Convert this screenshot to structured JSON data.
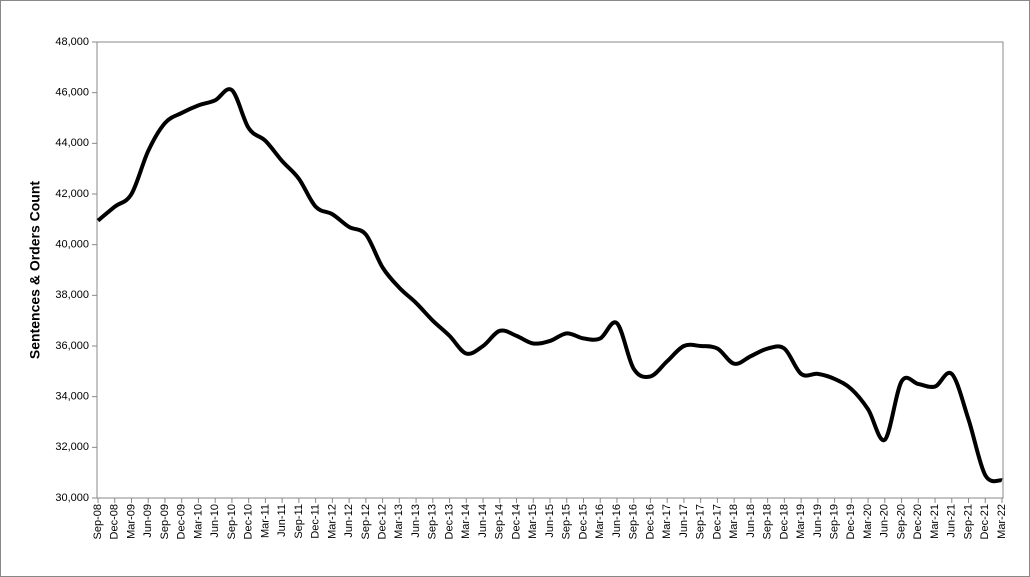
{
  "chart_data": {
    "type": "line",
    "y_label": "Sentences & Orders Count",
    "categories": [
      "Sep-08",
      "Dec-08",
      "Mar-09",
      "Jun-09",
      "Sep-09",
      "Dec-09",
      "Mar-10",
      "Jun-10",
      "Sep-10",
      "Dec-10",
      "Mar-11",
      "Jun-11",
      "Sep-11",
      "Dec-11",
      "Mar-12",
      "Jun-12",
      "Sep-12",
      "Dec-12",
      "Mar-13",
      "Jun-13",
      "Sep-13",
      "Dec-13",
      "Mar-14",
      "Jun-14",
      "Sep-14",
      "Dec-14",
      "Mar-15",
      "Jun-15",
      "Sep-15",
      "Dec-15",
      "Mar-16",
      "Jun-16",
      "Sep-16",
      "Dec-16",
      "Mar-17",
      "Jun-17",
      "Sep-17",
      "Dec-17",
      "Mar-18",
      "Jun-18",
      "Sep-18",
      "Dec-18",
      "Mar-19",
      "Jun-19",
      "Sep-19",
      "Dec-19",
      "Mar-20",
      "Jun-20",
      "Sep-20",
      "Dec-20",
      "Mar-21",
      "Jun-21",
      "Sep-21",
      "Dec-21",
      "Mar-22"
    ],
    "values": [
      40950,
      41500,
      42000,
      43700,
      44800,
      45200,
      45500,
      45700,
      46100,
      44600,
      44100,
      43300,
      42600,
      41500,
      41200,
      40700,
      40400,
      39100,
      38300,
      37700,
      37000,
      36400,
      35700,
      36000,
      36600,
      36400,
      36100,
      36200,
      36500,
      36300,
      36300,
      36900,
      35100,
      34800,
      35400,
      36000,
      36000,
      35900,
      35300,
      35600,
      35900,
      35900,
      34900,
      34900,
      34700,
      34300,
      33500,
      32300,
      34600,
      34500,
      34400,
      34900,
      33100,
      30900,
      30700
    ],
    "color": "#000000",
    "ylim": [
      30000,
      48000
    ],
    "yticks": [
      {
        "value": 30000,
        "label": "30,000"
      },
      {
        "value": 32000,
        "label": "32,000"
      },
      {
        "value": 34000,
        "label": "34,000"
      },
      {
        "value": 36000,
        "label": "36,000"
      },
      {
        "value": 38000,
        "label": "38,000"
      },
      {
        "value": 40000,
        "label": "40,000"
      },
      {
        "value": 42000,
        "label": "42,000"
      },
      {
        "value": 44000,
        "label": "44,000"
      },
      {
        "value": 46000,
        "label": "46,000"
      },
      {
        "value": 48000,
        "label": "48,000"
      }
    ],
    "grid": false
  }
}
